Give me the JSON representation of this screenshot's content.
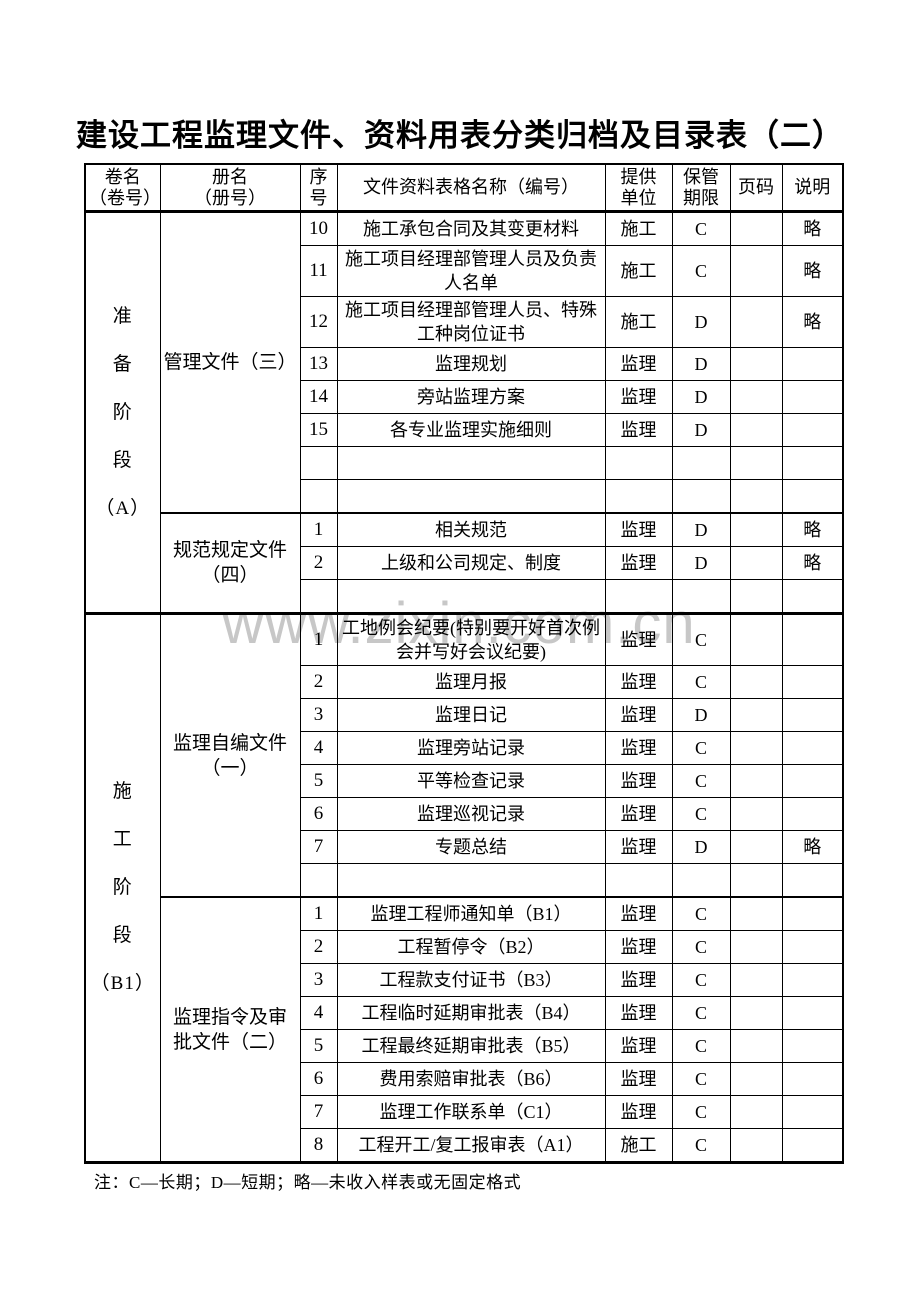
{
  "page": {
    "title": "建设工程监理文件、资料用表分类归档及目录表（二）",
    "watermark": "www.zixin.com.cn",
    "note": "注：C—长期；D—短期；略—未收入样表或无固定格式"
  },
  "table": {
    "headers": [
      "卷名\n（卷号）",
      "册名\n（册号）",
      "序\n号",
      "文件资料表格名称（编号）",
      "提供\n单位",
      "保管\n期限",
      "页码",
      "说明"
    ],
    "legend": {
      "C": "长期",
      "D": "短期",
      "略": "未收入样表或无固定格式"
    },
    "volumes": [
      {
        "name": "准备阶段",
        "code": "（A）",
        "label": "准\n备\n阶\n段\n（A）",
        "books": [
          {
            "name": "管理文件（三）",
            "label": "管理文件（三）",
            "rows": [
              {
                "no": "10",
                "title": "施工承包合同及其变更材料",
                "unit": "施工",
                "period": "C",
                "page": "",
                "note": "略"
              },
              {
                "no": "11",
                "title": "施工项目经理部管理人员及负责人名单",
                "unit": "施工",
                "period": "C",
                "page": "",
                "note": "略"
              },
              {
                "no": "12",
                "title": "施工项目经理部管理人员、特殊工种岗位证书",
                "unit": "施工",
                "period": "D",
                "page": "",
                "note": "略"
              },
              {
                "no": "13",
                "title": "监理规划",
                "unit": "监理",
                "period": "D",
                "page": "",
                "note": ""
              },
              {
                "no": "14",
                "title": "旁站监理方案",
                "unit": "监理",
                "period": "D",
                "page": "",
                "note": ""
              },
              {
                "no": "15",
                "title": "各专业监理实施细则",
                "unit": "监理",
                "period": "D",
                "page": "",
                "note": ""
              },
              {
                "no": "",
                "title": "",
                "unit": "",
                "period": "",
                "page": "",
                "note": ""
              },
              {
                "no": "",
                "title": "",
                "unit": "",
                "period": "",
                "page": "",
                "note": ""
              }
            ]
          },
          {
            "name": "规范规定文件（四）",
            "label": "规范规定文件\n（四）",
            "rows": [
              {
                "no": "1",
                "title": "相关规范",
                "unit": "监理",
                "period": "D",
                "page": "",
                "note": "略"
              },
              {
                "no": "2",
                "title": "上级和公司规定、制度",
                "unit": "监理",
                "period": "D",
                "page": "",
                "note": "略"
              },
              {
                "no": "",
                "title": "",
                "unit": "",
                "period": "",
                "page": "",
                "note": ""
              }
            ]
          }
        ]
      },
      {
        "name": "施工阶段",
        "code": "（B1）",
        "label": "施\n工\n阶\n段\n（B1）",
        "books": [
          {
            "name": "监理自编文件（一）",
            "label": "监理自编文件\n（一）",
            "rows": [
              {
                "no": "1",
                "title": "工地例会纪要(特别要开好首次例会并写好会议纪要)",
                "unit": "监理",
                "period": "C",
                "page": "",
                "note": ""
              },
              {
                "no": "2",
                "title": "监理月报",
                "unit": "监理",
                "period": "C",
                "page": "",
                "note": ""
              },
              {
                "no": "3",
                "title": "监理日记",
                "unit": "监理",
                "period": "D",
                "page": "",
                "note": ""
              },
              {
                "no": "4",
                "title": "监理旁站记录",
                "unit": "监理",
                "period": "C",
                "page": "",
                "note": ""
              },
              {
                "no": "5",
                "title": "平等检查记录",
                "unit": "监理",
                "period": "C",
                "page": "",
                "note": ""
              },
              {
                "no": "6",
                "title": "监理巡视记录",
                "unit": "监理",
                "period": "C",
                "page": "",
                "note": ""
              },
              {
                "no": "7",
                "title": "专题总结",
                "unit": "监理",
                "period": "D",
                "page": "",
                "note": "略"
              },
              {
                "no": "",
                "title": "",
                "unit": "",
                "period": "",
                "page": "",
                "note": ""
              }
            ]
          },
          {
            "name": "监理指令及审批文件（二）",
            "label": "监理指令及审\n批文件（二）",
            "rows": [
              {
                "no": "1",
                "title": "监理工程师通知单（B1）",
                "unit": "监理",
                "period": "C",
                "page": "",
                "note": ""
              },
              {
                "no": "2",
                "title": "工程暂停令（B2）",
                "unit": "监理",
                "period": "C",
                "page": "",
                "note": ""
              },
              {
                "no": "3",
                "title": "工程款支付证书（B3）",
                "unit": "监理",
                "period": "C",
                "page": "",
                "note": ""
              },
              {
                "no": "4",
                "title": "工程临时延期审批表（B4）",
                "unit": "监理",
                "period": "C",
                "page": "",
                "note": ""
              },
              {
                "no": "5",
                "title": "工程最终延期审批表（B5）",
                "unit": "监理",
                "period": "C",
                "page": "",
                "note": ""
              },
              {
                "no": "6",
                "title": "费用索赔审批表（B6）",
                "unit": "监理",
                "period": "C",
                "page": "",
                "note": ""
              },
              {
                "no": "7",
                "title": "监理工作联系单（C1）",
                "unit": "监理",
                "period": "C",
                "page": "",
                "note": ""
              },
              {
                "no": "8",
                "title": "工程开工/复工报审表（A1）",
                "unit": "施工",
                "period": "C",
                "page": "",
                "note": ""
              }
            ]
          }
        ]
      }
    ]
  }
}
